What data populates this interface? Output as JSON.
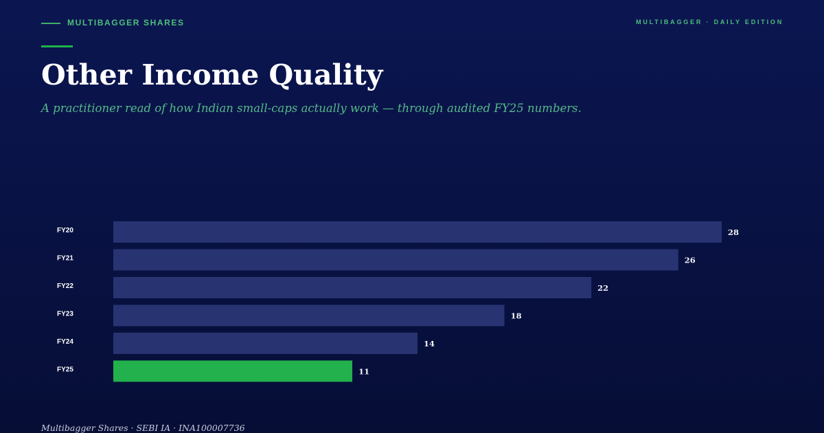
{
  "header": {
    "brand": "MULTIBAGGER SHARES",
    "edition": "MULTIBAGGER · DAILY EDITION"
  },
  "chart_data": {
    "type": "bar",
    "orientation": "horizontal",
    "title": "Other Income Quality",
    "subtitle": "A practitioner read of how Indian small-caps actually work — through audited FY25 numbers.",
    "categories": [
      "FY20",
      "FY21",
      "FY22",
      "FY23",
      "FY24",
      "FY25"
    ],
    "values": [
      28,
      26,
      22,
      18,
      14,
      11
    ],
    "colors": [
      "#283372",
      "#283372",
      "#283372",
      "#283372",
      "#283372",
      "#22b14c"
    ]
  },
  "footer": "Multibagger Shares · SEBI IA · INA100007736"
}
